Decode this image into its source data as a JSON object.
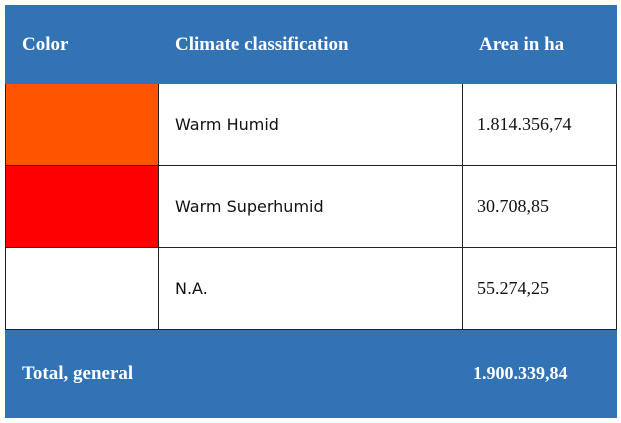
{
  "table": {
    "header": [
      "Color",
      "Climate classification",
      "Area in ha"
    ],
    "rows": [
      {
        "color": "#ff5500",
        "classification": "Warm Humid",
        "area": "1.814.356,74"
      },
      {
        "color": "#ff0000",
        "classification": "Warm Superhumid",
        "area": "30.708,85"
      },
      {
        "color": "#ffffff",
        "classification": "N.A.",
        "area": "55.274,25"
      }
    ],
    "total": {
      "label": "Total, general",
      "area": "1.900.339,84"
    }
  }
}
